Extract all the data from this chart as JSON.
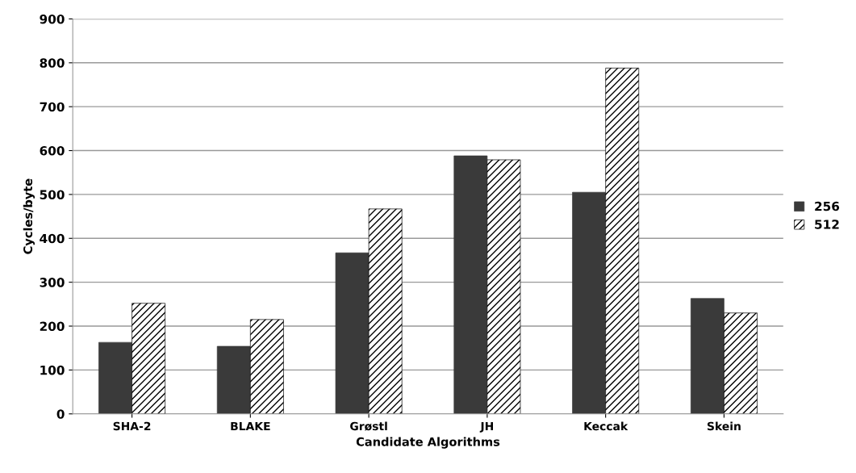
{
  "chart_data": {
    "type": "bar",
    "xlabel": "Candidate Algorithms",
    "ylabel": "Cycles/byte",
    "categories": [
      "SHA-2",
      "BLAKE",
      "Grøstl",
      "JH",
      "Keccak",
      "Skein"
    ],
    "series": [
      {
        "name": "256",
        "color": "#3a3a3a",
        "values": [
          163,
          154,
          367,
          588,
          505,
          263
        ]
      },
      {
        "name": "512",
        "color": "#000000",
        "values": [
          252,
          215,
          467,
          579,
          788,
          230
        ]
      }
    ],
    "ylim": [
      0,
      900
    ],
    "yticks": [
      0,
      100,
      200,
      300,
      400,
      500,
      600,
      700,
      800,
      900
    ],
    "grid": "y",
    "legend": "right"
  }
}
